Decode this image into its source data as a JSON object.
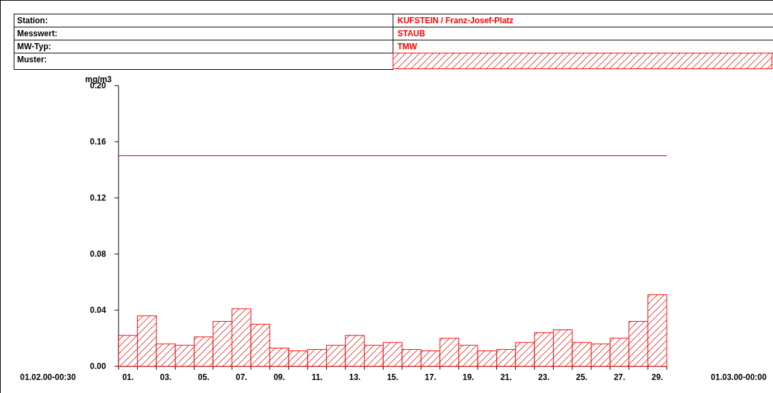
{
  "chart_data": {
    "type": "bar",
    "ylabel": "mg/m3",
    "annotations": [
      "Station:",
      "KUFSTEIN / Franz-Josef-Platz",
      "Messwert:",
      "STAUB",
      "MW-Typ:",
      "TMW",
      "Muster:",
      "01.02.00-00:30",
      "01.03.00-00:00"
    ],
    "categories": [
      "01.",
      null,
      "03.",
      null,
      "05.",
      null,
      "07.",
      null,
      "09.",
      null,
      "11.",
      null,
      "13.",
      null,
      "15.",
      null,
      "17.",
      null,
      "19.",
      null,
      "21.",
      null,
      "23.",
      null,
      "25.",
      null,
      "27.",
      null,
      "29."
    ],
    "values": [
      0.022,
      0.036,
      0.016,
      0.015,
      0.021,
      0.032,
      0.041,
      0.03,
      0.013,
      0.011,
      0.012,
      0.015,
      0.022,
      0.015,
      0.017,
      0.012,
      0.011,
      0.02,
      0.015,
      0.011,
      0.012,
      0.017,
      0.024,
      0.026,
      0.017,
      0.016,
      0.02,
      0.032,
      0.051
    ],
    "color": "#ff0000",
    "ylim": [
      0,
      0.2
    ],
    "yticks": [
      {
        "value": 0,
        "label": "0.00"
      },
      {
        "value": 0.04,
        "label": "0.04"
      },
      {
        "value": 0.08,
        "label": "0.08"
      },
      {
        "value": 0.12,
        "label": "0.12"
      },
      {
        "value": 0.16,
        "label": "0.16"
      },
      {
        "value": 0.2,
        "label": "0.20"
      }
    ],
    "ref_lines": [
      {
        "axis": "y",
        "value": 0.15,
        "color": "#c00000"
      }
    ]
  }
}
